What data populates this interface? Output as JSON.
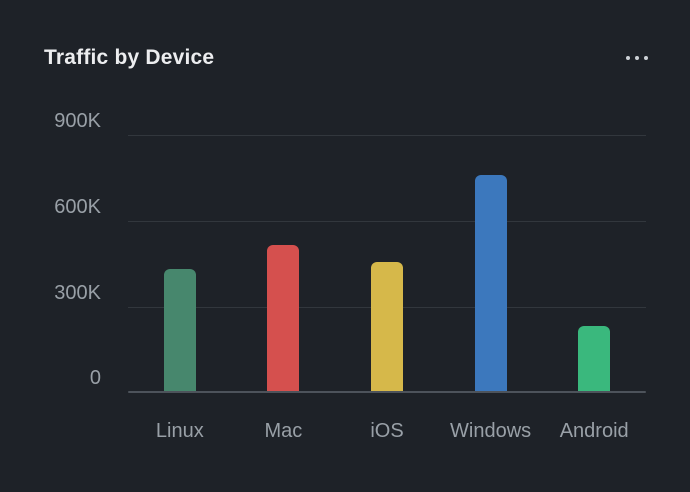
{
  "card": {
    "title": "Traffic by Device",
    "menu_icon": "ellipsis-horizontal-icon"
  },
  "chart_data": {
    "type": "bar",
    "title": "Traffic by Device",
    "categories": [
      "Linux",
      "Mac",
      "iOS",
      "Windows",
      "Android"
    ],
    "values": [
      425000,
      510000,
      450000,
      755000,
      225000
    ],
    "colors": [
      "#47876d",
      "#d5504e",
      "#d6b84a",
      "#3c78bd",
      "#3ab87d"
    ],
    "y_ticks_top_to_bottom": [
      "900K",
      "600K",
      "300K",
      "0"
    ],
    "ylim": [
      0,
      900000
    ],
    "xlabel": "",
    "ylabel": "",
    "grid": true,
    "legend": false,
    "background_color": "#1e2228",
    "gridline_color": "#32373d",
    "axis_line_color": "#4d535b",
    "tick_label_color": "#99a0a7"
  }
}
